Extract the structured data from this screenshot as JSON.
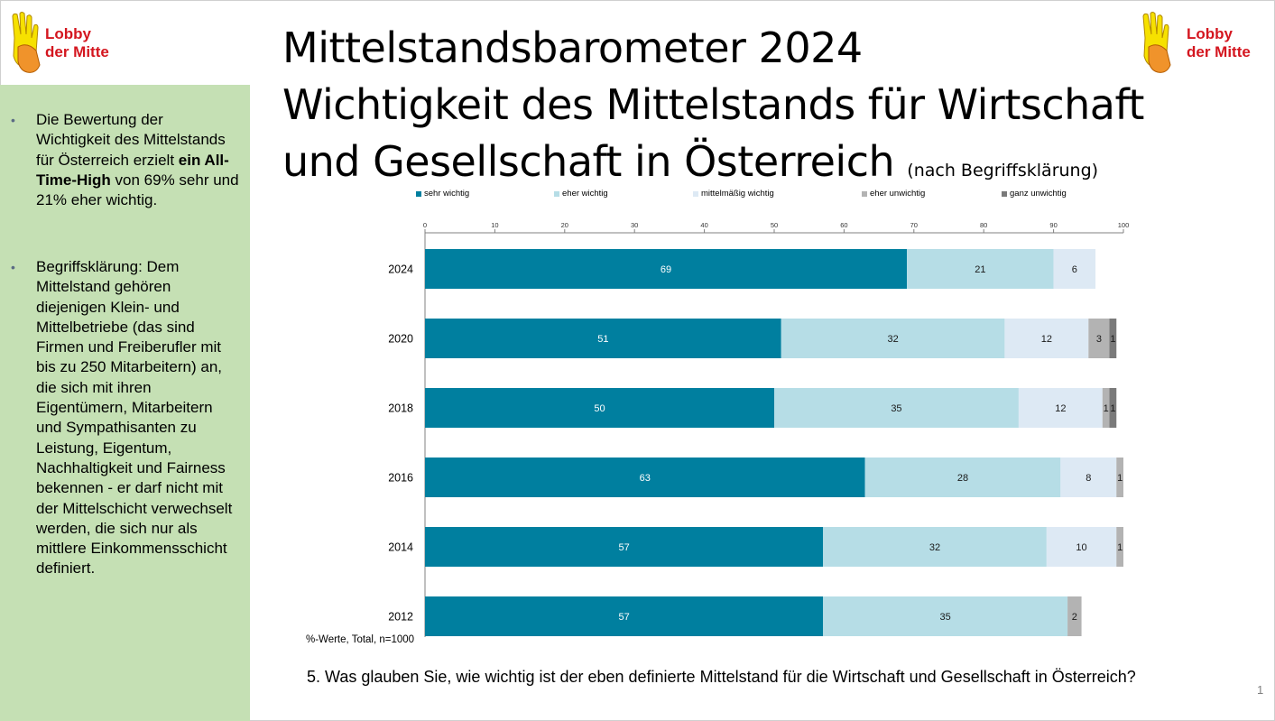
{
  "slide": {
    "title_line1": "Mittelstandsbarometer 2024",
    "title_line2": "Wichtigkeit des Mittelstands für Wirtschaft",
    "title_line3": "und Gesellschaft in Österreich",
    "title_note": "(nach Begriffsklärung)",
    "footnote": "%-Werte, Total, n=1000",
    "question": "5. Was glauben Sie, wie wichtig ist der eben definierte Mittelstand für die Wirtschaft und Gesellschaft in Österreich?",
    "page_number": "1"
  },
  "logo": {
    "line1": "Lobby",
    "line2": "der Mitte"
  },
  "sidebar": {
    "bullet1_prefix": "Die Bewertung der Wichtigkeit des Mittelstands für Österreich erzielt ",
    "bullet1_bold": "ein All-Time-High",
    "bullet1_suffix": " von 69% sehr und 21% eher wichtig.",
    "bullet2": "Begriffsklärung: Dem Mittelstand gehören diejenigen Klein- und Mittelbetriebe (das sind Firmen  und Freiberufler mit bis zu 250 Mitarbeitern) an, die sich mit ihren Eigentümern, Mitarbeitern und Sympathisanten  zu Leistung, Eigentum, Nachhaltigkeit und Fairness bekennen -  er darf nicht mit der Mittelschicht verwechselt werden, die sich nur als mittlere Einkommensschicht definiert."
  },
  "colors": {
    "sidebar_bg": "#c5e0b4",
    "logo_red": "#d4161f",
    "sehr_wichtig": "#007f9f",
    "eher_wichtig": "#b6dde6",
    "mittelmaessig_wichtig": "#dde9f4",
    "eher_unwichtig": "#b3b3b3",
    "ganz_unwichtig": "#7a7a7a"
  },
  "chart_data": {
    "type": "bar",
    "orientation": "horizontal",
    "stacked": true,
    "categories": [
      "2024",
      "2020",
      "2018",
      "2016",
      "2014",
      "2012"
    ],
    "series": [
      {
        "name": "sehr wichtig",
        "color": "#007f9f",
        "values": [
          69,
          51,
          50,
          63,
          57,
          57
        ]
      },
      {
        "name": "eher wichtig",
        "color": "#b6dde6",
        "values": [
          21,
          32,
          35,
          28,
          32,
          35
        ]
      },
      {
        "name": "mittelmäßig wichtig",
        "color": "#dde9f4",
        "values": [
          6,
          12,
          12,
          8,
          10,
          0
        ]
      },
      {
        "name": "eher unwichtig",
        "color": "#b3b3b3",
        "values": [
          0,
          3,
          1,
          1,
          1,
          2
        ]
      },
      {
        "name": "ganz unwichtig",
        "color": "#7a7a7a",
        "values": [
          0,
          1,
          1,
          0,
          0,
          0
        ]
      }
    ],
    "xlim": [
      0,
      100
    ],
    "xticks": [
      0,
      10,
      20,
      30,
      40,
      50,
      60,
      70,
      80,
      90,
      100
    ],
    "xaxis_position": "top",
    "legend_position": "top",
    "grid": false
  }
}
